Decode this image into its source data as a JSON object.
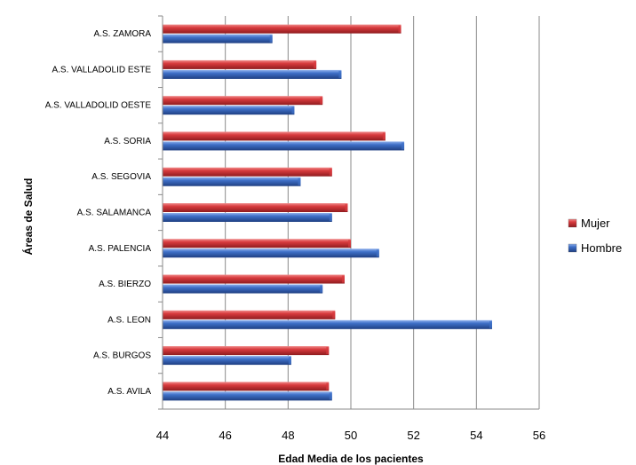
{
  "chart_data": {
    "type": "bar",
    "orientation": "horizontal",
    "categories": [
      "A.S. ZAMORA",
      "A.S. VALLADOLID ESTE",
      "A.S. VALLADOLID OESTE",
      "A.S. SORIA",
      "A.S. SEGOVIA",
      "A.S. SALAMANCA",
      "A.S. PALENCIA",
      "A.S. BIERZO",
      "A.S. LEON",
      "A.S. BURGOS",
      "A.S. AVILA"
    ],
    "series": [
      {
        "name": "Mujer",
        "color": "#d83b3e",
        "values": [
          51.6,
          48.9,
          49.1,
          51.1,
          49.4,
          49.9,
          50.0,
          49.8,
          49.5,
          49.3,
          49.3
        ]
      },
      {
        "name": "Hombre",
        "color": "#3f70c8",
        "values": [
          47.5,
          49.7,
          48.2,
          51.7,
          48.4,
          49.4,
          50.9,
          49.1,
          54.5,
          48.1,
          49.4
        ]
      }
    ],
    "xlabel": "Edad Media de los pacientes",
    "ylabel": "Áreas de Salud",
    "xlim": [
      44,
      56
    ],
    "xticks": [
      44,
      46,
      48,
      50,
      52,
      54,
      56
    ],
    "grid": true,
    "legend": "right"
  }
}
